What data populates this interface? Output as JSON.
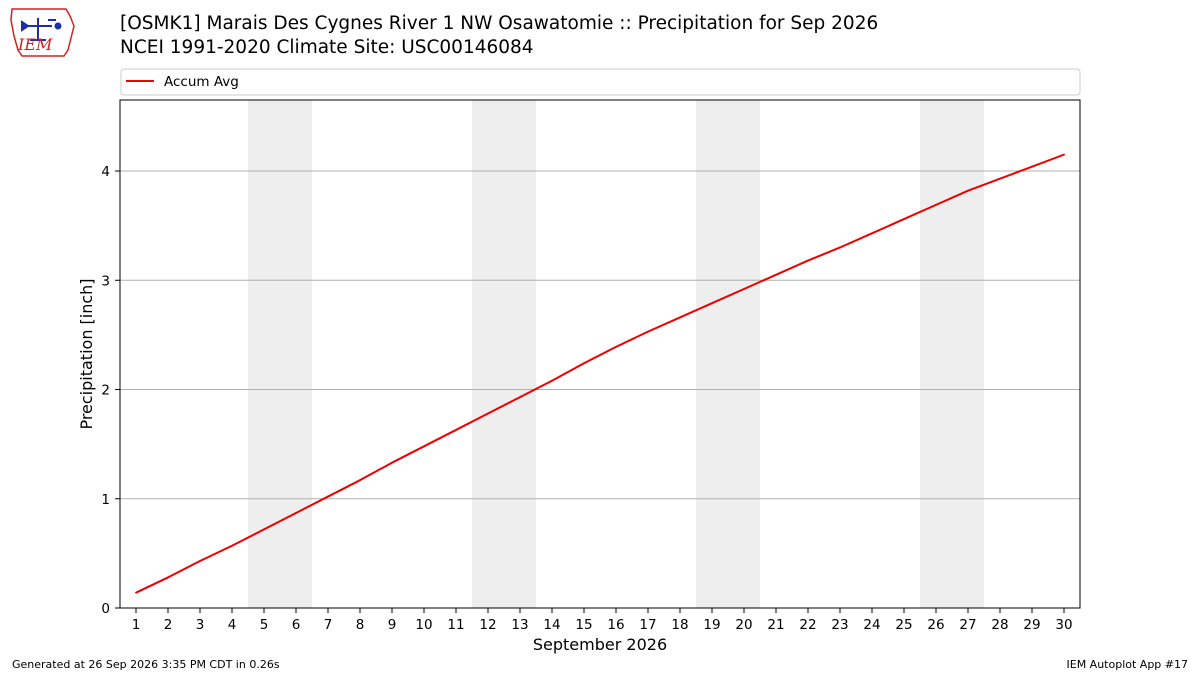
{
  "header": {
    "logo_text": "IEM",
    "title": "[OSMK1] Marais Des Cygnes River 1 NW Osawatomie :: Precipitation for Sep 2026",
    "subtitle": "NCEI 1991-2020 Climate Site: USC00146084"
  },
  "footer": {
    "left": "Generated at 26 Sep 2026 3:35 PM CDT in 0.26s",
    "right": "IEM Autoplot App #17"
  },
  "colors": {
    "line": "#ee0000",
    "weekend_band": "#eeeeee",
    "grid": "#b0b0b0",
    "logo_blue": "#1d2ea8",
    "logo_red": "#d22222"
  },
  "chart_data": {
    "type": "line",
    "xlabel": "September 2026",
    "ylabel": "Precipitation [inch]",
    "x": [
      1,
      2,
      3,
      4,
      5,
      6,
      7,
      8,
      9,
      10,
      11,
      12,
      13,
      14,
      15,
      16,
      17,
      18,
      19,
      20,
      21,
      22,
      23,
      24,
      25,
      26,
      27,
      28,
      29,
      30
    ],
    "series": [
      {
        "name": "Accum Avg",
        "values": [
          0.14,
          0.28,
          0.43,
          0.57,
          0.72,
          0.87,
          1.02,
          1.17,
          1.33,
          1.48,
          1.63,
          1.78,
          1.93,
          2.08,
          2.24,
          2.39,
          2.53,
          2.66,
          2.79,
          2.92,
          3.05,
          3.18,
          3.3,
          3.43,
          3.56,
          3.69,
          3.82,
          3.93,
          4.04,
          4.15
        ]
      }
    ],
    "xlim": [
      0.5,
      30.5
    ],
    "ylim": [
      0,
      4.65
    ],
    "yticks": [
      0,
      1,
      2,
      3,
      4
    ],
    "weekend_bands": [
      [
        5,
        6
      ],
      [
        12,
        13
      ],
      [
        19,
        20
      ],
      [
        26,
        27
      ]
    ],
    "grid": "horizontal",
    "legend_position": "top"
  }
}
